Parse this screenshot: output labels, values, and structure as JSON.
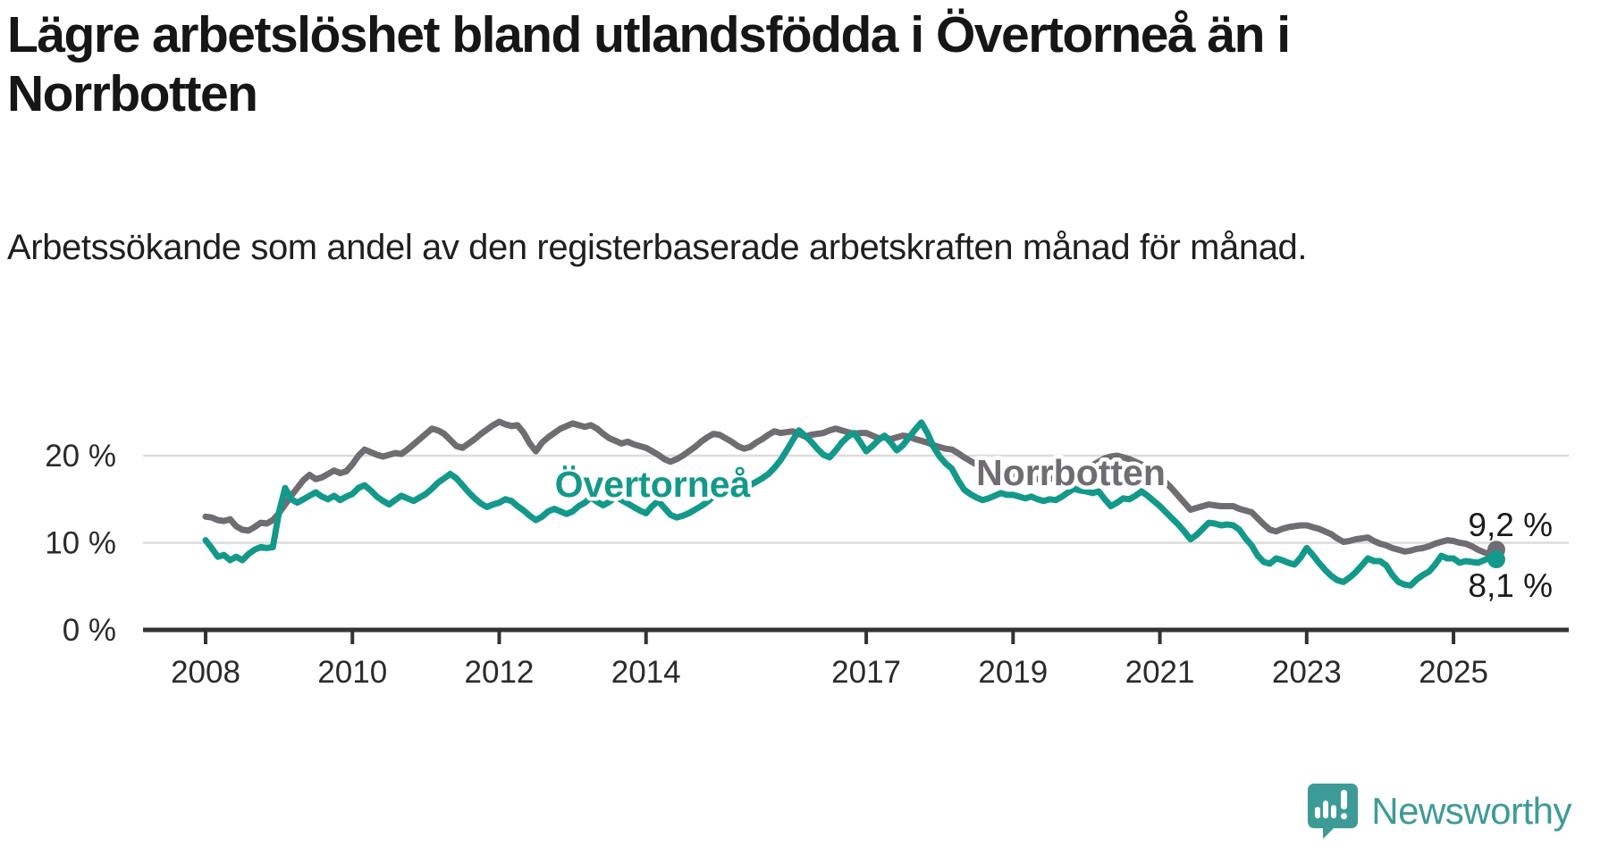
{
  "header": {
    "title": "Lägre arbetslöshet bland utlandsfödda i Övertorneå än i Norrbotten",
    "subtitle": "Arbetssökande som andel av den registerbaserade arbetskraften månad för månad."
  },
  "chart_data": {
    "type": "line",
    "title": "Lägre arbetslöshet bland utlandsfödda i Övertorneå än i Norrbotten",
    "subtitle": "Arbetssökande som andel av den registerbaserade arbetskraften månad för månad.",
    "unit": "%",
    "x_start": {
      "year": 2008,
      "month": 1
    },
    "x_end": {
      "year": 2025,
      "month": 8
    },
    "x_tick_years": [
      2008,
      2010,
      2012,
      2014,
      2017,
      2019,
      2021,
      2023,
      2025
    ],
    "x_tick_labels": [
      "2008",
      "2010",
      "2012",
      "2014",
      "2017",
      "2019",
      "2021",
      "2023",
      "2025"
    ],
    "y_ticks": [
      {
        "value": 0,
        "label": "0 %"
      },
      {
        "value": 10,
        "label": "10 %"
      },
      {
        "value": 20,
        "label": "20 %"
      }
    ],
    "ylim": [
      0,
      33
    ],
    "grid": true,
    "legend_position": "inline-labels",
    "series": [
      {
        "name": "Norrbotten",
        "color": "#6F6C72",
        "end_label": "9,2 %",
        "end_value": 9.2,
        "values": [
          13.0,
          12.9,
          12.6,
          12.5,
          12.7,
          11.9,
          11.5,
          11.4,
          11.8,
          12.3,
          12.2,
          12.6,
          13.4,
          14.4,
          15.4,
          16.3,
          17.2,
          17.8,
          17.3,
          17.5,
          17.9,
          18.3,
          18.0,
          18.2,
          19.0,
          20.0,
          20.7,
          20.4,
          20.1,
          19.9,
          20.1,
          20.3,
          20.2,
          20.7,
          21.3,
          21.9,
          22.5,
          23.1,
          22.9,
          22.5,
          21.8,
          21.1,
          20.9,
          21.4,
          21.9,
          22.5,
          23.0,
          23.5,
          23.9,
          23.6,
          23.4,
          23.5,
          22.6,
          21.4,
          20.5,
          21.5,
          22.1,
          22.6,
          23.1,
          23.4,
          23.7,
          23.5,
          23.3,
          23.5,
          23.1,
          22.5,
          22.0,
          21.7,
          21.4,
          21.6,
          21.3,
          21.1,
          20.9,
          20.5,
          20.1,
          19.6,
          19.3,
          19.6,
          20.0,
          20.5,
          21.0,
          21.6,
          22.1,
          22.5,
          22.4,
          22.0,
          21.6,
          21.1,
          20.8,
          21.0,
          21.5,
          21.9,
          22.4,
          22.8,
          22.6,
          22.7,
          22.8,
          22.5,
          22.2,
          22.4,
          22.5,
          22.6,
          22.9,
          23.1,
          22.9,
          22.7,
          22.5,
          22.6,
          22.6,
          22.3,
          22.0,
          22.1,
          21.9,
          22.1,
          22.3,
          22.2,
          21.9,
          21.7,
          21.5,
          21.2,
          21.0,
          20.8,
          20.7,
          20.3,
          19.8,
          19.4,
          19.0,
          18.6,
          18.3,
          18.1,
          17.9,
          17.7,
          17.8,
          17.6,
          17.4,
          17.5,
          17.3,
          17.1,
          17.3,
          17.5,
          17.7,
          17.9,
          18.1,
          18.3,
          18.6,
          18.9,
          19.3,
          19.7,
          19.9,
          20.0,
          19.8,
          19.6,
          19.3,
          19.0,
          18.6,
          18.1,
          17.5,
          16.9,
          16.2,
          15.4,
          14.6,
          13.8,
          14.0,
          14.2,
          14.4,
          14.3,
          14.2,
          14.2,
          14.2,
          13.9,
          13.7,
          13.5,
          12.8,
          12.1,
          11.5,
          11.3,
          11.6,
          11.8,
          11.9,
          12.0,
          12.0,
          11.8,
          11.6,
          11.3,
          11.0,
          10.5,
          10.1,
          10.2,
          10.4,
          10.5,
          10.6,
          10.2,
          9.9,
          9.7,
          9.4,
          9.2,
          9.0,
          9.1,
          9.3,
          9.4,
          9.6,
          9.9,
          10.1,
          10.3,
          10.2,
          10.0,
          9.9,
          9.6,
          9.2,
          8.9,
          8.7,
          9.2
        ]
      },
      {
        "name": "Övertorneå",
        "color": "#13998A",
        "end_label": "8,1 %",
        "end_value": 8.1,
        "values": [
          10.3,
          9.4,
          8.4,
          8.6,
          8.0,
          8.4,
          8.0,
          8.7,
          9.2,
          9.5,
          9.4,
          9.5,
          13.5,
          16.3,
          15.0,
          14.6,
          15.0,
          15.4,
          15.8,
          15.3,
          15.0,
          15.4,
          14.9,
          15.3,
          15.6,
          16.3,
          16.6,
          16.0,
          15.3,
          14.8,
          14.4,
          14.9,
          15.4,
          15.1,
          14.8,
          15.2,
          15.6,
          16.2,
          16.9,
          17.4,
          17.9,
          17.4,
          16.6,
          15.8,
          15.1,
          14.5,
          14.1,
          14.4,
          14.6,
          15.0,
          14.8,
          14.2,
          13.7,
          13.1,
          12.6,
          13.0,
          13.6,
          13.9,
          13.6,
          13.3,
          13.6,
          14.2,
          14.6,
          15.2,
          14.7,
          14.3,
          14.7,
          15.3,
          14.9,
          14.5,
          14.1,
          13.7,
          13.4,
          14.2,
          14.8,
          14.0,
          13.2,
          12.9,
          13.1,
          13.4,
          13.8,
          14.2,
          14.7,
          15.3,
          15.9,
          16.5,
          16.2,
          16.5,
          16.9,
          16.6,
          17.0,
          17.4,
          17.9,
          18.6,
          19.5,
          20.6,
          21.8,
          22.9,
          22.3,
          21.6,
          20.8,
          20.1,
          19.8,
          20.6,
          21.5,
          22.2,
          22.6,
          21.6,
          20.5,
          21.1,
          21.8,
          22.3,
          21.5,
          20.6,
          21.2,
          22.1,
          23.0,
          23.8,
          22.6,
          21.0,
          19.9,
          19.1,
          18.5,
          17.2,
          16.1,
          15.6,
          15.2,
          14.9,
          15.1,
          15.4,
          15.7,
          15.5,
          15.5,
          15.3,
          15.1,
          15.3,
          15.0,
          14.8,
          15.0,
          14.9,
          15.3,
          15.8,
          16.2,
          16.0,
          15.9,
          15.7,
          15.9,
          15.0,
          14.2,
          14.6,
          15.1,
          15.0,
          15.4,
          15.9,
          15.4,
          14.8,
          14.2,
          13.5,
          12.8,
          12.1,
          11.3,
          10.4,
          10.9,
          11.6,
          12.3,
          12.2,
          12.0,
          12.1,
          12.0,
          11.5,
          10.5,
          9.7,
          8.5,
          7.8,
          7.6,
          8.2,
          8.0,
          7.7,
          7.5,
          8.3,
          9.4,
          8.6,
          7.7,
          6.9,
          6.2,
          5.7,
          5.5,
          6.0,
          6.6,
          7.4,
          8.2,
          7.9,
          7.9,
          7.4,
          6.3,
          5.5,
          5.2,
          5.1,
          5.8,
          6.3,
          6.7,
          7.5,
          8.5,
          8.2,
          8.2,
          7.7,
          7.9,
          7.8,
          7.7,
          8.0,
          8.3,
          8.1
        ]
      }
    ],
    "inline_labels": [
      {
        "text": "Övertorneå",
        "series": 1
      },
      {
        "text": "Norrbotten",
        "series": 0
      }
    ],
    "axis_color": "#333333",
    "grid_color": "#dcdcdc",
    "tick_label_color": "#2b2b2b",
    "value_label_color": "#1a1a1a"
  },
  "footer": {
    "brand": "Newsworthy",
    "brand_color": "#3D9B97"
  }
}
